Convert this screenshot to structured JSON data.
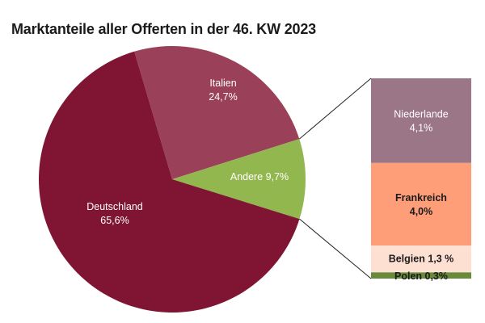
{
  "chart_data": {
    "type": "pie",
    "subtype": "pie-of-bar",
    "title": "Marktanteile aller Offerten in der 46. KW 2023",
    "unit": "%",
    "slices": [
      {
        "label": "Italien",
        "value": 24.7,
        "value_label": "24,7%",
        "color": "#9a4058"
      },
      {
        "label": "Andere",
        "value": 9.7,
        "value_label": "9,7%",
        "color": "#93b74f"
      },
      {
        "label": "Deutschland",
        "value": 65.6,
        "value_label": "65,6%",
        "color": "#7f1533"
      }
    ],
    "breakdown_of": "Andere",
    "breakdown": [
      {
        "label": "Niederlande",
        "value": 4.1,
        "value_label": "4,1%",
        "color": "#9b7686",
        "text_color": "#ffffff"
      },
      {
        "label": "Frankreich",
        "value": 4.0,
        "value_label": "4,0%",
        "color": "#fd9e79",
        "text_color": "#1b1b1b"
      },
      {
        "label": "Belgien",
        "value": 1.3,
        "value_label": "1,3 %",
        "color": "#fde0d2",
        "text_color": "#1b1b1b"
      },
      {
        "label": "Polen",
        "value": 0.3,
        "value_label": "0,3%",
        "color": "#6a8a3b",
        "text_color": "#1b1b1b"
      }
    ]
  }
}
